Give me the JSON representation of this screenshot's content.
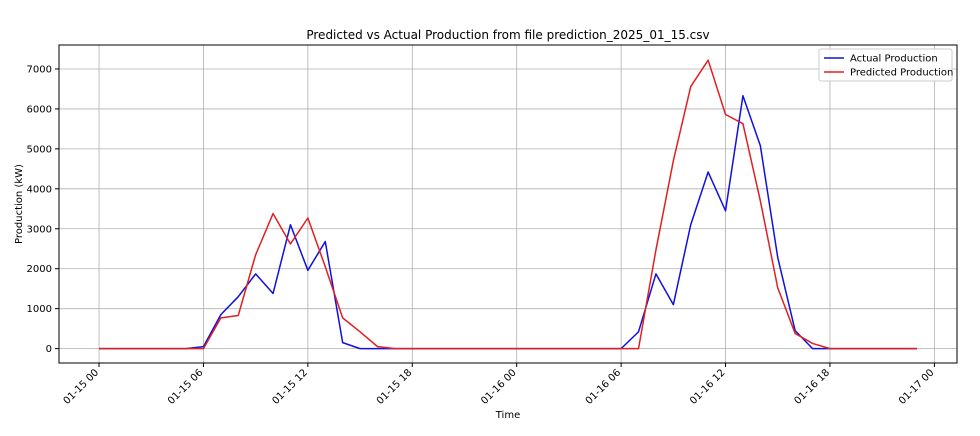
{
  "chart_data": {
    "type": "line",
    "title": "Predicted vs Actual Production from file prediction_2025_01_15.csv",
    "xlabel": "Time",
    "ylabel": "Production (kW)",
    "xlim": [
      -2.3,
      49.3
    ],
    "ylim": [
      -360,
      7600
    ],
    "grid": true,
    "legend_position": "top-right",
    "x_ticks": [
      {
        "value": 0,
        "label": "01-15 00"
      },
      {
        "value": 6,
        "label": "01-15 06"
      },
      {
        "value": 12,
        "label": "01-15 12"
      },
      {
        "value": 18,
        "label": "01-15 18"
      },
      {
        "value": 24,
        "label": "01-16 00"
      },
      {
        "value": 30,
        "label": "01-16 06"
      },
      {
        "value": 36,
        "label": "01-16 12"
      },
      {
        "value": 42,
        "label": "01-16 18"
      },
      {
        "value": 48,
        "label": "01-17 00"
      }
    ],
    "y_ticks": [
      0,
      1000,
      2000,
      3000,
      4000,
      5000,
      6000,
      7000
    ],
    "x_hours": [
      0,
      1,
      2,
      3,
      4,
      5,
      6,
      7,
      8,
      9,
      10,
      11,
      12,
      13,
      14,
      15,
      16,
      17,
      18,
      19,
      20,
      21,
      22,
      23,
      24,
      25,
      26,
      27,
      28,
      29,
      30,
      31,
      32,
      33,
      34,
      35,
      36,
      37,
      38,
      39,
      40,
      41,
      42,
      43,
      44,
      45,
      46,
      47
    ],
    "series": [
      {
        "name": "Actual Production",
        "color": "#1010e0",
        "values": [
          0,
          0,
          0,
          0,
          0,
          0,
          50,
          850,
          1300,
          1870,
          1380,
          3100,
          1960,
          2680,
          150,
          0,
          0,
          0,
          0,
          0,
          0,
          0,
          0,
          0,
          0,
          0,
          0,
          0,
          0,
          0,
          0,
          420,
          1870,
          1100,
          3100,
          4420,
          3450,
          6330,
          5080,
          2280,
          450,
          0,
          0,
          0,
          0,
          0,
          0,
          0
        ]
      },
      {
        "name": "Predicted Production",
        "color": "#e02020",
        "values": [
          0,
          0,
          0,
          0,
          0,
          0,
          0,
          770,
          830,
          2350,
          3380,
          2620,
          3270,
          2050,
          770,
          420,
          50,
          0,
          0,
          0,
          0,
          0,
          0,
          0,
          0,
          0,
          0,
          0,
          0,
          0,
          0,
          0,
          2470,
          4700,
          6560,
          7220,
          5860,
          5630,
          3700,
          1520,
          380,
          130,
          0,
          0,
          0,
          0,
          0,
          0
        ]
      }
    ]
  }
}
